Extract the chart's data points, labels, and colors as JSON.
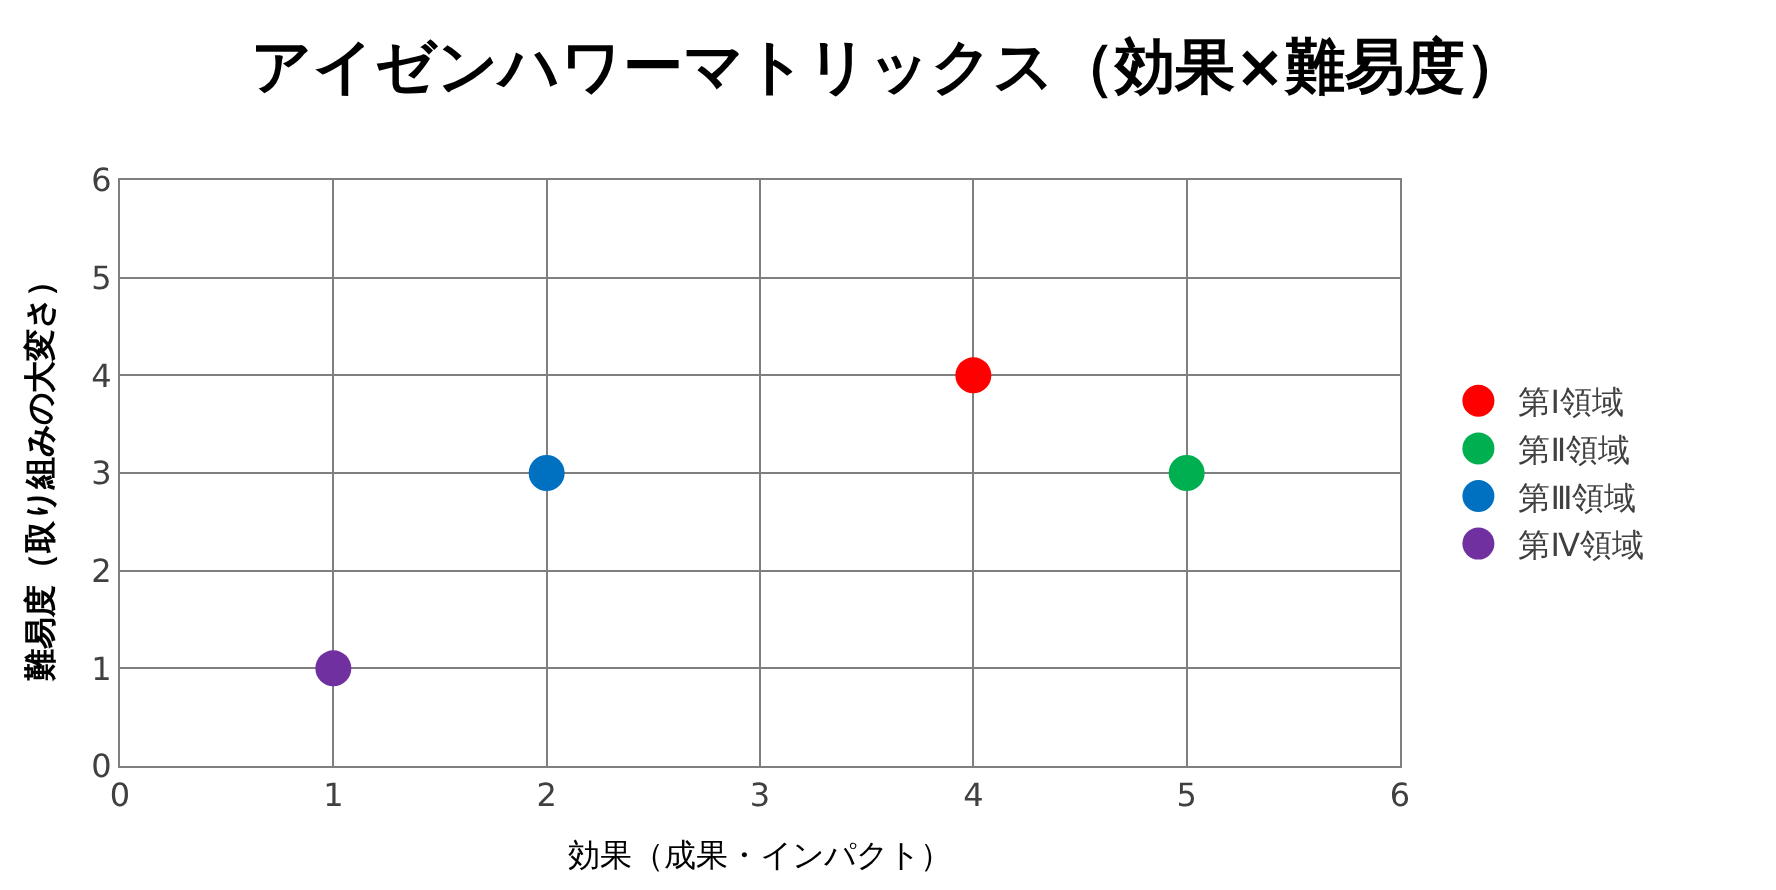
{
  "chart_data": {
    "type": "scatter",
    "title": "アイゼンハワーマトリックス（効果×難易度）",
    "xlabel": "効果（成果・インパクト）",
    "ylabel": "難易度（取り組みの大変さ）",
    "series": [
      {
        "name": "第Ⅰ領域",
        "color": "#ff0000",
        "x": [
          4
        ],
        "values": [
          4
        ]
      },
      {
        "name": "第Ⅱ領域",
        "color": "#00b050",
        "x": [
          5
        ],
        "values": [
          3
        ]
      },
      {
        "name": "第Ⅲ領域",
        "color": "#0070c0",
        "x": [
          2
        ],
        "values": [
          3
        ]
      },
      {
        "name": "第Ⅳ領域",
        "color": "#7030a0",
        "x": [
          1
        ],
        "values": [
          1
        ]
      }
    ],
    "xlim": [
      0,
      6
    ],
    "xticks": [
      0,
      1,
      2,
      3,
      4,
      5,
      6
    ],
    "ylim": [
      0,
      6
    ],
    "yticks": [
      0,
      1,
      2,
      3,
      4,
      5,
      6
    ],
    "grid": true,
    "legend": "right",
    "marker": "circle"
  }
}
